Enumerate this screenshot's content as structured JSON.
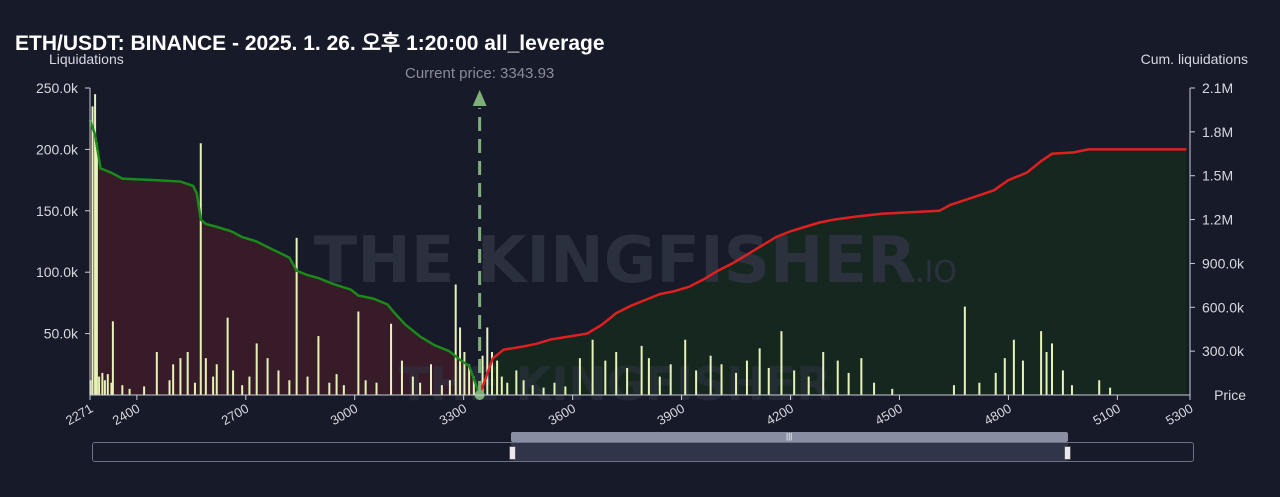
{
  "title": "ETH/USDT: BINANCE - 2025. 1. 26. 오후 1:20:00 all_leverage",
  "watermark": "THE KINGFISHER",
  "watermark_suffix": ".IO",
  "colors": {
    "background": "#171a28",
    "short_liq_fill": "#3b1c28",
    "long_liq_fill": "#16291f",
    "cum_left_line": "#1a8a1a",
    "cum_right_line": "#e02020",
    "bars": "#e6f2b8",
    "current_price_marker": "#7fb07a"
  },
  "chart_data": {
    "type": "bar",
    "title": "ETH/USDT: BINANCE - 2025. 1. 26. 오후 1:20:00 all_leverage",
    "xlabel": "Price",
    "ylabel": "Liquidations",
    "y2label": "Cum. liquidations",
    "current_price_label": "Current price: 3343.93",
    "current_price": 3343.93,
    "xlim": [
      2271,
      5300
    ],
    "ylim": [
      0,
      250000
    ],
    "y2lim": [
      0,
      2100000
    ],
    "x_ticks": [
      "2271",
      "2400",
      "2700",
      "3000",
      "3300",
      "3600",
      "3900",
      "4200",
      "4500",
      "4800",
      "5100",
      "5300"
    ],
    "x_tick_values": [
      2271,
      2400,
      2700,
      3000,
      3300,
      3600,
      3900,
      4200,
      4500,
      4800,
      5100,
      5300
    ],
    "y_ticks": [
      "50.0k",
      "100.0k",
      "150.0k",
      "200.0k",
      "250.0k"
    ],
    "y_tick_values": [
      50000,
      100000,
      150000,
      200000,
      250000
    ],
    "y2_ticks": [
      "300.0k",
      "600.0k",
      "900.0k",
      "1.2M",
      "1.5M",
      "1.8M",
      "2.1M"
    ],
    "y2_tick_values": [
      300000,
      600000,
      900000,
      1200000,
      1500000,
      1800000,
      2100000
    ],
    "bars": [
      {
        "x": 2272,
        "y": 12000
      },
      {
        "x": 2278,
        "y": 235000
      },
      {
        "x": 2285,
        "y": 245000
      },
      {
        "x": 2290,
        "y": 205000
      },
      {
        "x": 2296,
        "y": 15000
      },
      {
        "x": 2305,
        "y": 18000
      },
      {
        "x": 2312,
        "y": 12000
      },
      {
        "x": 2320,
        "y": 17000
      },
      {
        "x": 2330,
        "y": 10000
      },
      {
        "x": 2334,
        "y": 60000
      },
      {
        "x": 2360,
        "y": 8000
      },
      {
        "x": 2380,
        "y": 5000
      },
      {
        "x": 2420,
        "y": 7000
      },
      {
        "x": 2455,
        "y": 35000
      },
      {
        "x": 2490,
        "y": 12000
      },
      {
        "x": 2500,
        "y": 25000
      },
      {
        "x": 2520,
        "y": 30000
      },
      {
        "x": 2540,
        "y": 35000
      },
      {
        "x": 2560,
        "y": 10000
      },
      {
        "x": 2576,
        "y": 205000
      },
      {
        "x": 2590,
        "y": 30000
      },
      {
        "x": 2610,
        "y": 15000
      },
      {
        "x": 2620,
        "y": 25000
      },
      {
        "x": 2650,
        "y": 63000
      },
      {
        "x": 2665,
        "y": 20000
      },
      {
        "x": 2690,
        "y": 8000
      },
      {
        "x": 2710,
        "y": 15000
      },
      {
        "x": 2730,
        "y": 42000
      },
      {
        "x": 2760,
        "y": 30000
      },
      {
        "x": 2790,
        "y": 20000
      },
      {
        "x": 2820,
        "y": 12000
      },
      {
        "x": 2840,
        "y": 128000
      },
      {
        "x": 2870,
        "y": 15000
      },
      {
        "x": 2900,
        "y": 48000
      },
      {
        "x": 2930,
        "y": 10000
      },
      {
        "x": 2950,
        "y": 17000
      },
      {
        "x": 2970,
        "y": 8000
      },
      {
        "x": 3010,
        "y": 68000
      },
      {
        "x": 3030,
        "y": 12000
      },
      {
        "x": 3060,
        "y": 10000
      },
      {
        "x": 3100,
        "y": 58000
      },
      {
        "x": 3130,
        "y": 28000
      },
      {
        "x": 3160,
        "y": 15000
      },
      {
        "x": 3180,
        "y": 10000
      },
      {
        "x": 3210,
        "y": 25000
      },
      {
        "x": 3240,
        "y": 8000
      },
      {
        "x": 3262,
        "y": 12000
      },
      {
        "x": 3278,
        "y": 90000
      },
      {
        "x": 3290,
        "y": 55000
      },
      {
        "x": 3302,
        "y": 35000
      },
      {
        "x": 3315,
        "y": 25000
      },
      {
        "x": 3328,
        "y": 15000
      },
      {
        "x": 3352,
        "y": 32000
      },
      {
        "x": 3365,
        "y": 55000
      },
      {
        "x": 3378,
        "y": 35000
      },
      {
        "x": 3392,
        "y": 28000
      },
      {
        "x": 3405,
        "y": 15000
      },
      {
        "x": 3420,
        "y": 10000
      },
      {
        "x": 3445,
        "y": 20000
      },
      {
        "x": 3465,
        "y": 12000
      },
      {
        "x": 3490,
        "y": 8000
      },
      {
        "x": 3520,
        "y": 6000
      },
      {
        "x": 3550,
        "y": 10000
      },
      {
        "x": 3580,
        "y": 7000
      },
      {
        "x": 3620,
        "y": 30000
      },
      {
        "x": 3655,
        "y": 45000
      },
      {
        "x": 3690,
        "y": 28000
      },
      {
        "x": 3720,
        "y": 35000
      },
      {
        "x": 3750,
        "y": 22000
      },
      {
        "x": 3790,
        "y": 40000
      },
      {
        "x": 3810,
        "y": 30000
      },
      {
        "x": 3840,
        "y": 15000
      },
      {
        "x": 3870,
        "y": 25000
      },
      {
        "x": 3910,
        "y": 45000
      },
      {
        "x": 3940,
        "y": 20000
      },
      {
        "x": 3980,
        "y": 32000
      },
      {
        "x": 4010,
        "y": 25000
      },
      {
        "x": 4050,
        "y": 18000
      },
      {
        "x": 4080,
        "y": 28000
      },
      {
        "x": 4115,
        "y": 38000
      },
      {
        "x": 4140,
        "y": 22000
      },
      {
        "x": 4175,
        "y": 52000
      },
      {
        "x": 4210,
        "y": 20000
      },
      {
        "x": 4250,
        "y": 15000
      },
      {
        "x": 4290,
        "y": 35000
      },
      {
        "x": 4330,
        "y": 28000
      },
      {
        "x": 4360,
        "y": 18000
      },
      {
        "x": 4395,
        "y": 30000
      },
      {
        "x": 4430,
        "y": 10000
      },
      {
        "x": 4480,
        "y": 5000
      },
      {
        "x": 4650,
        "y": 8000
      },
      {
        "x": 4680,
        "y": 72000
      },
      {
        "x": 4720,
        "y": 10000
      },
      {
        "x": 4765,
        "y": 18000
      },
      {
        "x": 4790,
        "y": 30000
      },
      {
        "x": 4815,
        "y": 45000
      },
      {
        "x": 4840,
        "y": 28000
      },
      {
        "x": 4890,
        "y": 52000
      },
      {
        "x": 4905,
        "y": 35000
      },
      {
        "x": 4920,
        "y": 42000
      },
      {
        "x": 4950,
        "y": 20000
      },
      {
        "x": 4975,
        "y": 8000
      },
      {
        "x": 5050,
        "y": 12000
      },
      {
        "x": 5080,
        "y": 6000
      }
    ],
    "cum_left": [
      [
        2271,
        1880000
      ],
      [
        2285,
        1780000
      ],
      [
        2300,
        1550000
      ],
      [
        2330,
        1520000
      ],
      [
        2360,
        1480000
      ],
      [
        2450,
        1470000
      ],
      [
        2520,
        1460000
      ],
      [
        2555,
        1430000
      ],
      [
        2565,
        1380000
      ],
      [
        2576,
        1200000
      ],
      [
        2590,
        1170000
      ],
      [
        2620,
        1150000
      ],
      [
        2660,
        1120000
      ],
      [
        2690,
        1080000
      ],
      [
        2730,
        1050000
      ],
      [
        2770,
        1000000
      ],
      [
        2820,
        940000
      ],
      [
        2840,
        850000
      ],
      [
        2870,
        820000
      ],
      [
        2900,
        800000
      ],
      [
        2940,
        760000
      ],
      [
        2990,
        720000
      ],
      [
        3010,
        680000
      ],
      [
        3050,
        660000
      ],
      [
        3090,
        620000
      ],
      [
        3110,
        560000
      ],
      [
        3140,
        480000
      ],
      [
        3180,
        400000
      ],
      [
        3220,
        340000
      ],
      [
        3260,
        300000
      ],
      [
        3290,
        240000
      ],
      [
        3315,
        200000
      ],
      [
        3343.93,
        0
      ]
    ],
    "cum_right": [
      [
        3343.93,
        0
      ],
      [
        3380,
        250000
      ],
      [
        3410,
        310000
      ],
      [
        3460,
        330000
      ],
      [
        3500,
        350000
      ],
      [
        3540,
        380000
      ],
      [
        3590,
        400000
      ],
      [
        3640,
        420000
      ],
      [
        3680,
        480000
      ],
      [
        3720,
        560000
      ],
      [
        3760,
        610000
      ],
      [
        3800,
        650000
      ],
      [
        3840,
        690000
      ],
      [
        3880,
        710000
      ],
      [
        3920,
        740000
      ],
      [
        3960,
        790000
      ],
      [
        4000,
        850000
      ],
      [
        4040,
        900000
      ],
      [
        4080,
        960000
      ],
      [
        4120,
        1020000
      ],
      [
        4160,
        1080000
      ],
      [
        4200,
        1120000
      ],
      [
        4240,
        1150000
      ],
      [
        4280,
        1180000
      ],
      [
        4320,
        1200000
      ],
      [
        4380,
        1220000
      ],
      [
        4450,
        1240000
      ],
      [
        4530,
        1250000
      ],
      [
        4610,
        1260000
      ],
      [
        4640,
        1300000
      ],
      [
        4700,
        1350000
      ],
      [
        4760,
        1400000
      ],
      [
        4800,
        1470000
      ],
      [
        4850,
        1520000
      ],
      [
        4890,
        1600000
      ],
      [
        4920,
        1650000
      ],
      [
        4980,
        1660000
      ],
      [
        5020,
        1680000
      ],
      [
        5100,
        1680000
      ],
      [
        5290,
        1680000
      ]
    ]
  }
}
